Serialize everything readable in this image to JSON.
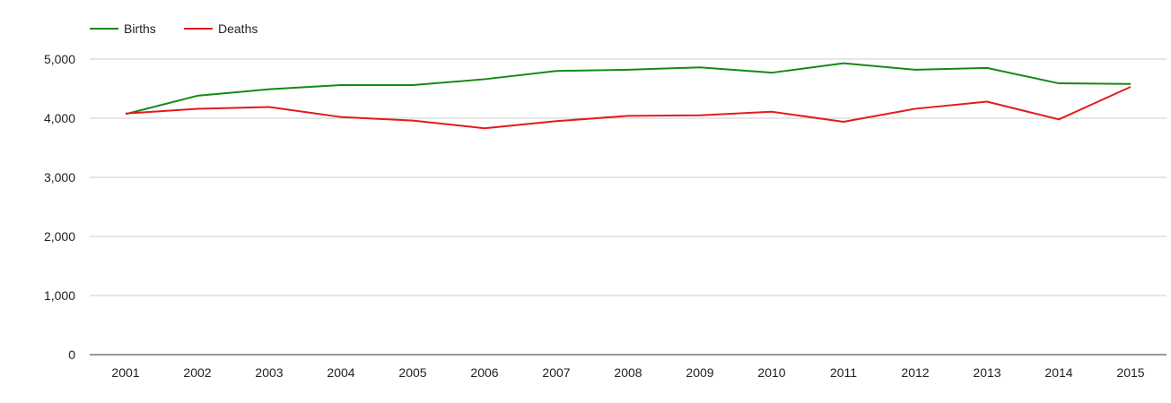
{
  "chart_data": {
    "type": "line",
    "title": "",
    "xlabel": "",
    "ylabel": "",
    "x": [
      "2001",
      "2002",
      "2003",
      "2004",
      "2005",
      "2006",
      "2007",
      "2008",
      "2009",
      "2010",
      "2011",
      "2012",
      "2013",
      "2014",
      "2015"
    ],
    "series": [
      {
        "name": "Births",
        "color": "#138a13",
        "values": [
          4070,
          4380,
          4490,
          4560,
          4560,
          4660,
          4800,
          4820,
          4860,
          4770,
          4930,
          4820,
          4850,
          4590,
          4580
        ]
      },
      {
        "name": "Deaths",
        "color": "#e31a1c",
        "values": [
          4080,
          4160,
          4190,
          4020,
          3960,
          3830,
          3950,
          4040,
          4050,
          4110,
          3940,
          4160,
          4280,
          3980,
          4530
        ]
      }
    ],
    "ylim": [
      0,
      5500
    ],
    "y_ticks": [
      "0",
      "1,000",
      "2,000",
      "3,000",
      "4,000",
      "5,000"
    ],
    "y_tick_values": [
      0,
      1000,
      2000,
      3000,
      4000,
      5000
    ],
    "grid": true,
    "legend": "top-left"
  }
}
